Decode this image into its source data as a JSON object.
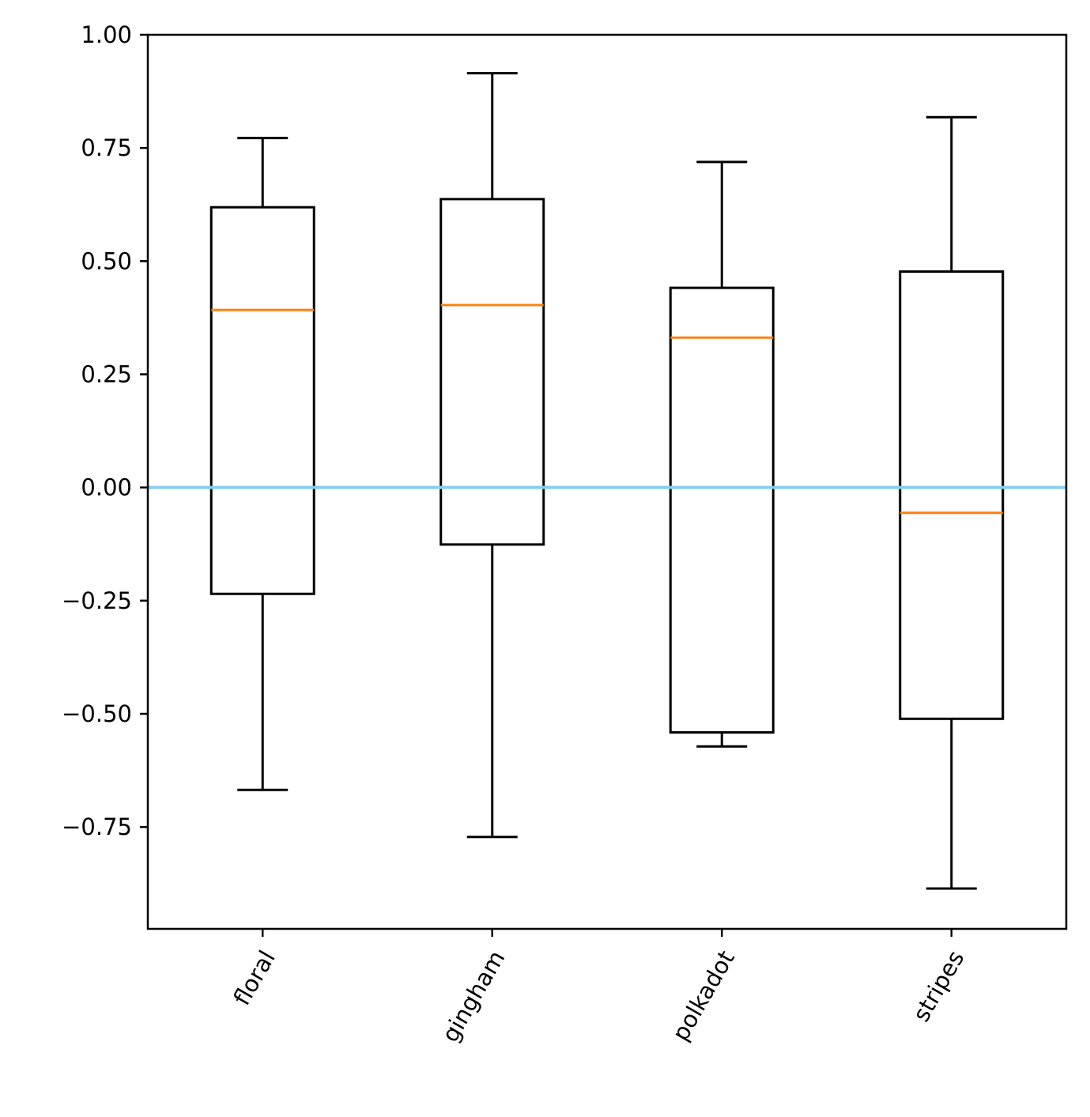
{
  "chart_data": {
    "type": "box",
    "title": "",
    "xlabel": "",
    "ylabel": "",
    "ylim": [
      -0.975,
      1.0
    ],
    "yticks": [
      -0.75,
      -0.5,
      -0.25,
      0.0,
      0.25,
      0.5,
      0.75,
      1.0
    ],
    "ytick_labels": [
      "−0.75",
      "−0.50",
      "−0.25",
      "0.00",
      "0.25",
      "0.50",
      "0.75",
      "1.00"
    ],
    "categories": [
      "floral",
      "gingham",
      "polkadot",
      "stripes"
    ],
    "xtick_rotation_deg": 60,
    "boxes": [
      {
        "category": "floral",
        "whisker_low": -0.668,
        "q1": -0.235,
        "median": 0.392,
        "q3": 0.619,
        "whisker_high": 0.772
      },
      {
        "category": "gingham",
        "whisker_low": -0.772,
        "q1": -0.126,
        "median": 0.403,
        "q3": 0.637,
        "whisker_high": 0.915
      },
      {
        "category": "polkadot",
        "whisker_low": -0.572,
        "q1": -0.541,
        "median": 0.331,
        "q3": 0.441,
        "whisker_high": 0.719
      },
      {
        "category": "stripes",
        "whisker_low": -0.886,
        "q1": -0.511,
        "median": -0.056,
        "q3": 0.477,
        "whisker_high": 0.818
      }
    ],
    "reference_line": {
      "y": 0.0,
      "color": "#87ceeb"
    },
    "colors": {
      "box": "#000000",
      "median": "#ff7f0e",
      "axes": "#000000"
    },
    "grid": false,
    "legend": "none"
  }
}
